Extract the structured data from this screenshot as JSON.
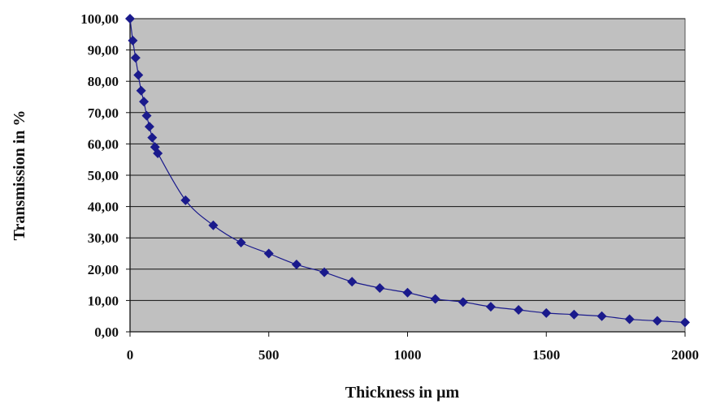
{
  "chart_data": {
    "type": "scatter",
    "title": "",
    "xlabel": "Thickness in µm",
    "ylabel": "Transmission in %",
    "xlim": [
      0,
      2000
    ],
    "ylim": [
      0,
      100
    ],
    "x_ticks": [
      0,
      500,
      1000,
      1500,
      2000
    ],
    "x_tick_labels": [
      "0",
      "500",
      "1000",
      "1500",
      "2000"
    ],
    "y_ticks": [
      0,
      10,
      20,
      30,
      40,
      50,
      60,
      70,
      80,
      90,
      100
    ],
    "y_tick_labels": [
      "0,00",
      "10,00",
      "20,00",
      "30,00",
      "40,00",
      "50,00",
      "60,00",
      "70,00",
      "80,00",
      "90,00",
      "100,00"
    ],
    "grid": "horizontal",
    "plot_background": "#c0c0c0",
    "marker_color": "#1a1a8c",
    "line_color": "#1a1a8c",
    "marker": "diamond",
    "series": [
      {
        "x": [
          0,
          10,
          20,
          30,
          40,
          50,
          60,
          70,
          80,
          90,
          100,
          200,
          300,
          400,
          500,
          600,
          700,
          800,
          900,
          1000,
          1100,
          1200,
          1300,
          1400,
          1500,
          1600,
          1700,
          1800,
          1900,
          2000
        ],
        "y": [
          100,
          93,
          87.5,
          82,
          77,
          73.5,
          69,
          65.5,
          62,
          59,
          57,
          42,
          34,
          28.5,
          25,
          21.5,
          19,
          16,
          14,
          12.5,
          10.5,
          9.5,
          8,
          7,
          6,
          5.5,
          5,
          4,
          3.5,
          3
        ]
      }
    ]
  }
}
